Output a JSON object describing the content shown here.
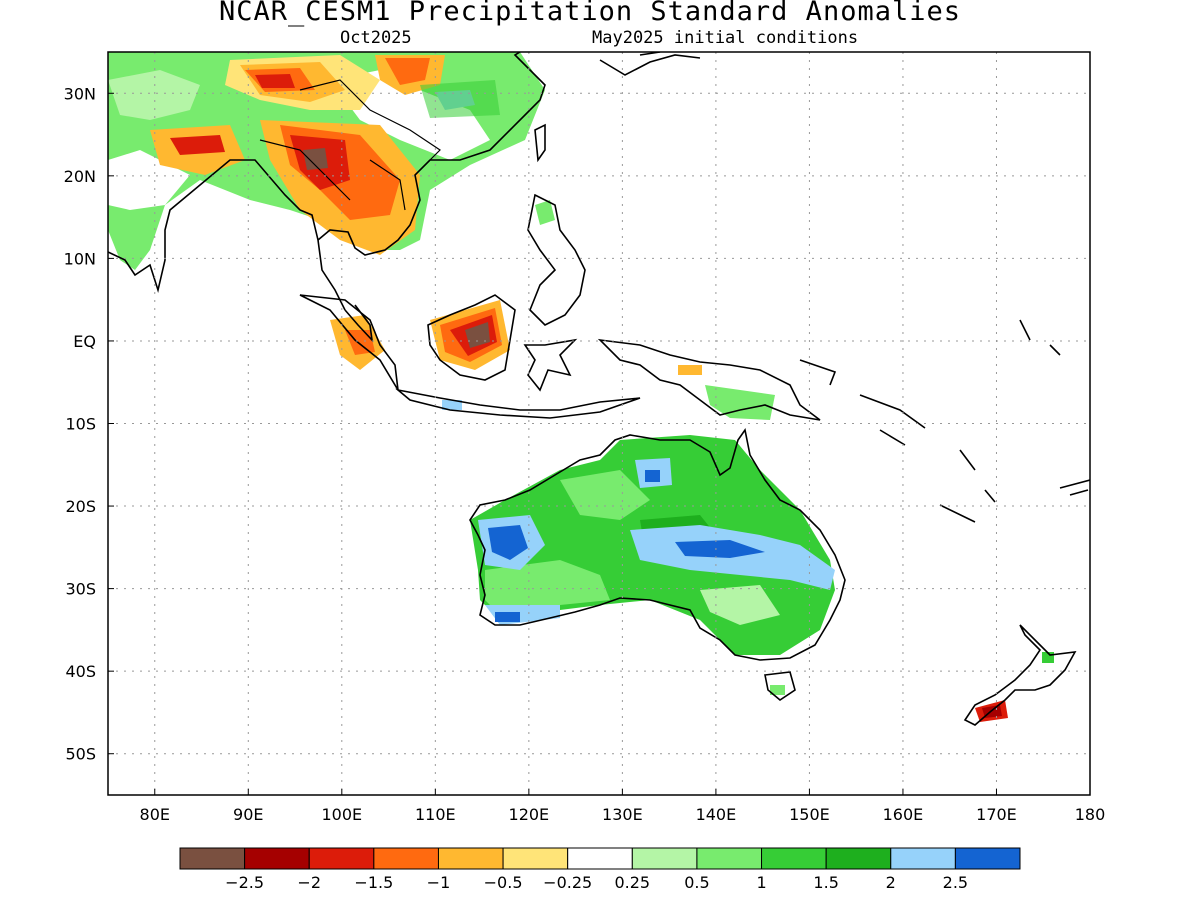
{
  "title": "NCAR_CESM1 Precipitation Standard Anomalies",
  "subtitle_left": "Oct2025",
  "subtitle_right": "May2025 initial conditions",
  "map": {
    "lon_range": [
      75,
      180
    ],
    "lat_range": [
      -55,
      35
    ],
    "x_ticks": [
      "80E",
      "90E",
      "100E",
      "110E",
      "120E",
      "130E",
      "140E",
      "150E",
      "160E",
      "170E",
      "180"
    ],
    "x_tick_values": [
      80,
      90,
      100,
      110,
      120,
      130,
      140,
      150,
      160,
      170,
      180
    ],
    "y_ticks": [
      "30N",
      "20N",
      "10N",
      "EQ",
      "10S",
      "20S",
      "30S",
      "40S",
      "50S"
    ],
    "y_tick_values": [
      30,
      20,
      10,
      0,
      -10,
      -20,
      -30,
      -40,
      -50
    ],
    "gridlines": "dotted"
  },
  "colorbar": {
    "colors": [
      "#7a5040",
      "#a50000",
      "#dc1c0a",
      "#ff6a10",
      "#ffb830",
      "#ffe478",
      "#ffffff",
      "#b4f5a6",
      "#78eb6e",
      "#36cd36",
      "#1eaf1e",
      "#96d2fa",
      "#1464d2"
    ],
    "labels": [
      "-2.5",
      "-2",
      "-1.5",
      "-1",
      "-0.5",
      "-0.25",
      "0.25",
      "0.5",
      "1",
      "1.5",
      "2",
      "2.5"
    ]
  },
  "anomaly_regions": [
    {
      "name": "Australia interior",
      "lon": 130,
      "lat": -25,
      "category": "1.5"
    },
    {
      "name": "Central Australia band",
      "lon": 140,
      "lat": -25,
      "category": "2"
    },
    {
      "name": "Western Australia coast",
      "lon": 117,
      "lat": -26,
      "category": "2.5"
    },
    {
      "name": "Myanmar",
      "lon": 97,
      "lat": 22,
      "category": "-2.5"
    },
    {
      "name": "Borneo",
      "lon": 115,
      "lat": 0,
      "category": "-2.5"
    },
    {
      "name": "Southern New Zealand",
      "lon": 169,
      "lat": -45,
      "category": "-2"
    },
    {
      "name": "Indochina",
      "lon": 104,
      "lat": 17,
      "category": "-1"
    },
    {
      "name": "Central China",
      "lon": 113,
      "lat": 28,
      "category": "0.5"
    }
  ]
}
